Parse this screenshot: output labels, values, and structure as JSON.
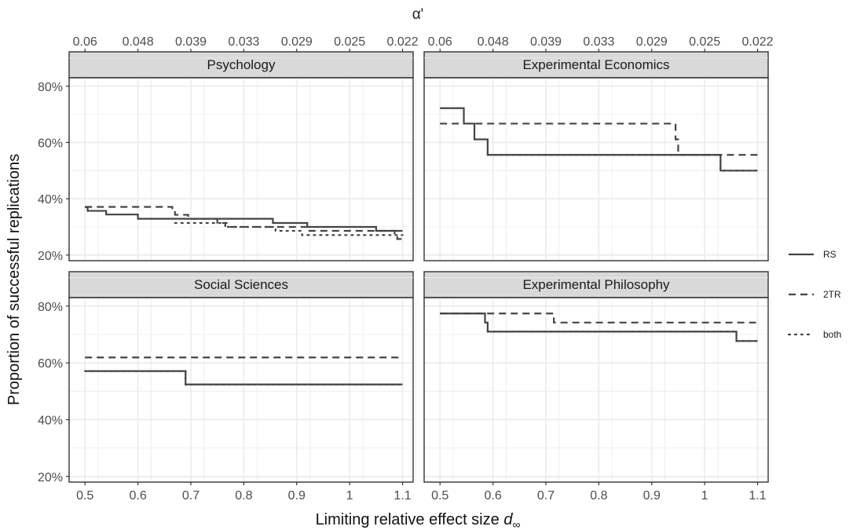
{
  "chart_data": {
    "type": "line",
    "layout": "2x2 facet grid, step lines",
    "top_axis": {
      "title": "α'",
      "ticks": [
        "0.06",
        "0.048",
        "0.039",
        "0.033",
        "0.029",
        "0.025",
        "0.022"
      ]
    },
    "xlabel_main": "Limiting relative effect size ",
    "xlabel_sub": "d",
    "xlabel_subscript": "∞",
    "ylabel": "Proportion of successful replications",
    "x_ticks": [
      0.5,
      0.6,
      0.7,
      0.8,
      0.9,
      1.0,
      1.1
    ],
    "x_tick_labels": [
      "0.5",
      "0.6",
      "0.7",
      "0.8",
      "0.9",
      "1",
      "1.1"
    ],
    "y_ticks": [
      20,
      40,
      60,
      80
    ],
    "y_tick_labels": [
      "20%",
      "40%",
      "60%",
      "80%"
    ],
    "xlim": [
      0.47,
      1.12
    ],
    "ylim": [
      18,
      83
    ],
    "grid": true,
    "legend": {
      "position": "right",
      "entries": [
        {
          "label": "RS",
          "style": "solid"
        },
        {
          "label": "2TR",
          "style": "dashed"
        },
        {
          "label": "both",
          "style": "dotted"
        }
      ]
    },
    "colors": {
      "line": "#444444",
      "strip_bg": "#d9d9d9",
      "grid": "#ebebeb",
      "panel_border": "#333333"
    },
    "panels": [
      {
        "title": "Psychology",
        "series": [
          {
            "name": "RS",
            "style": "solid",
            "points": [
              [
                0.5,
                37
              ],
              [
                0.505,
                35.7
              ],
              [
                0.54,
                34.4
              ],
              [
                0.6,
                32.9
              ],
              [
                0.855,
                31.4
              ],
              [
                0.92,
                30
              ],
              [
                1.05,
                28.6
              ],
              [
                1.1,
                28.6
              ]
            ]
          },
          {
            "name": "2TR",
            "style": "dashed",
            "points": [
              [
                0.5,
                37.1
              ],
              [
                0.665,
                35.6
              ],
              [
                0.67,
                34.3
              ],
              [
                0.69,
                34.3
              ],
              [
                0.695,
                32.9
              ],
              [
                0.75,
                31.4
              ],
              [
                0.765,
                30
              ],
              [
                0.92,
                28.6
              ],
              [
                1.085,
                27.1
              ],
              [
                1.09,
                25.7
              ],
              [
                1.1,
                25.7
              ]
            ]
          },
          {
            "name": "both",
            "style": "dotted",
            "points": [
              [
                0.67,
                31.4
              ],
              [
                0.77,
                30
              ],
              [
                0.86,
                28.6
              ],
              [
                0.91,
                27.1
              ],
              [
                1.1,
                27.1
              ]
            ]
          }
        ]
      },
      {
        "title": "Experimental Economics",
        "series": [
          {
            "name": "RS",
            "style": "solid",
            "points": [
              [
                0.5,
                72.2
              ],
              [
                0.545,
                72.2
              ],
              [
                0.545,
                66.7
              ],
              [
                0.565,
                61.1
              ],
              [
                0.59,
                55.6
              ],
              [
                1.03,
                55.6
              ],
              [
                1.03,
                50
              ],
              [
                1.1,
                50
              ]
            ]
          },
          {
            "name": "2TR",
            "style": "dashed",
            "points": [
              [
                0.5,
                66.7
              ],
              [
                0.94,
                66.7
              ],
              [
                0.945,
                61.1
              ],
              [
                0.95,
                55.6
              ],
              [
                1.1,
                55.6
              ]
            ]
          },
          {
            "name": "both",
            "style": "dotted",
            "points": [
              [
                0.59,
                55.6
              ],
              [
                1.03,
                55.6
              ],
              [
                1.03,
                50
              ],
              [
                1.1,
                50
              ]
            ]
          }
        ]
      },
      {
        "title": "Social Sciences",
        "series": [
          {
            "name": "RS",
            "style": "solid",
            "points": [
              [
                0.5,
                57.1
              ],
              [
                0.69,
                57.1
              ],
              [
                0.69,
                52.4
              ],
              [
                1.1,
                52.4
              ]
            ]
          },
          {
            "name": "2TR",
            "style": "dashed",
            "points": [
              [
                0.5,
                61.9
              ],
              [
                1.1,
                61.9
              ]
            ]
          },
          {
            "name": "both",
            "style": "dotted",
            "points": [
              [
                0.5,
                57.1
              ],
              [
                0.69,
                57.1
              ],
              [
                0.69,
                52.4
              ],
              [
                1.1,
                52.4
              ]
            ]
          }
        ]
      },
      {
        "title": "Experimental Philosophy",
        "series": [
          {
            "name": "RS",
            "style": "solid",
            "points": [
              [
                0.5,
                77.4
              ],
              [
                0.58,
                77.4
              ],
              [
                0.585,
                74.2
              ],
              [
                0.59,
                71
              ],
              [
                1.06,
                71
              ],
              [
                1.06,
                67.7
              ],
              [
                1.1,
                67.7
              ]
            ]
          },
          {
            "name": "2TR",
            "style": "dashed",
            "points": [
              [
                0.5,
                77.4
              ],
              [
                0.715,
                77.4
              ],
              [
                0.715,
                74.2
              ],
              [
                1.1,
                74.2
              ]
            ]
          },
          {
            "name": "both",
            "style": "dotted",
            "points": [
              [
                0.59,
                71
              ],
              [
                1.06,
                71
              ],
              [
                1.06,
                67.7
              ],
              [
                1.1,
                67.7
              ]
            ]
          }
        ]
      }
    ]
  }
}
